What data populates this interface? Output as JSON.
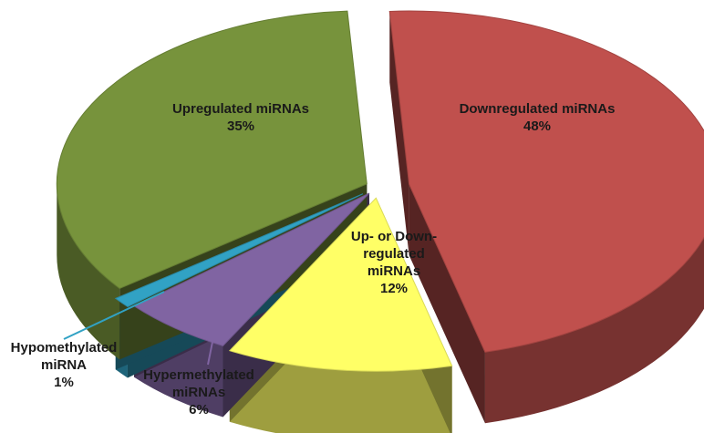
{
  "chart_data": {
    "type": "pie",
    "style": "3d-exploded",
    "slices": [
      {
        "label_lines": [
          "Downregulated miRNAs"
        ],
        "value": 48,
        "value_text": "48%",
        "color": "#C0504D"
      },
      {
        "label_lines": [
          "Up- or Down-",
          "regulated",
          "miRNAs"
        ],
        "value": 12,
        "value_text": "12%",
        "color": "#FFFF66"
      },
      {
        "label_lines": [
          "Hypermethylated",
          "miRNAs"
        ],
        "value": 6,
        "value_text": "6%",
        "color": "#8064A2"
      },
      {
        "label_lines": [
          "Hypomethylated",
          "miRNA"
        ],
        "value": 1,
        "value_text": "1%",
        "color": "#31A2C4"
      },
      {
        "label_lines": [
          "Upregulated miRNAs"
        ],
        "value": 35,
        "value_text": "35%",
        "color": "#77933C"
      }
    ]
  }
}
